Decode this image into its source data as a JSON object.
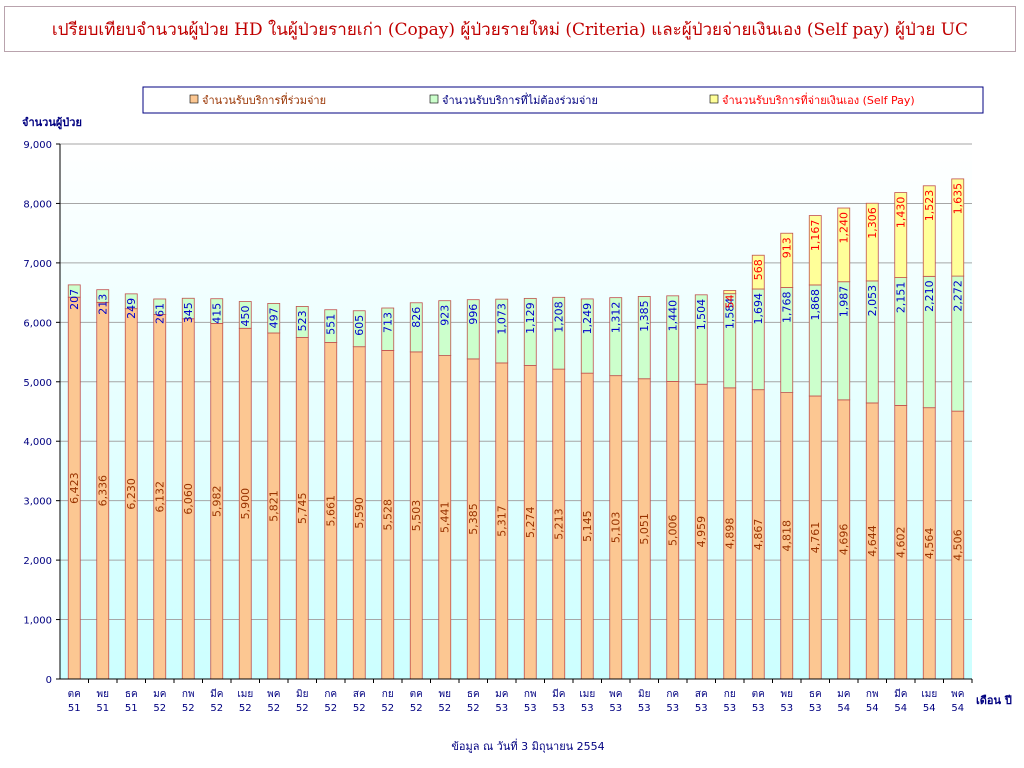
{
  "title": "เปรียบเทียบจำนวนผู้ป่วย HD ในผู้ป่วยรายเก่า (Copay) ผู้ป่วยรายใหม่ (Criteria)  และผู้ป่วยจ่ายเงินเอง (Self pay) ผู้ป่วย UC",
  "footnote": "ข้อมูล ณ วันที่ 3 มิถุนายน 2554",
  "colors": {
    "copay": "#fcc792",
    "criteria": "#ccffcc",
    "selfpay": "#ffff99",
    "bar_border": "#c0504d",
    "plot_bg_top": "#ffffff",
    "plot_bg_bottom": "#ccffff",
    "axis_text": "#000080",
    "copay_label": "#993300",
    "criteria_label": "#0000cc",
    "selfpay_label": "#ff0000"
  },
  "chart_data": {
    "type": "bar",
    "stacked": true,
    "title": "",
    "ylabel": "จำนวนผู้ป่วย",
    "xlabel": "เดือน ปี",
    "ylim": [
      0,
      9000
    ],
    "yticks": [
      "0",
      "1,000",
      "2,000",
      "3,000",
      "4,000",
      "5,000",
      "6,000",
      "7,000",
      "8,000",
      "9,000"
    ],
    "grid": true,
    "legend_position": "top",
    "categories": [
      [
        "ตค",
        "51"
      ],
      [
        "พย",
        "51"
      ],
      [
        "ธค",
        "51"
      ],
      [
        "มค",
        "52"
      ],
      [
        "กพ",
        "52"
      ],
      [
        "มีค",
        "52"
      ],
      [
        "เมย",
        "52"
      ],
      [
        "พค",
        "52"
      ],
      [
        "มิย",
        "52"
      ],
      [
        "กค",
        "52"
      ],
      [
        "สค",
        "52"
      ],
      [
        "กย",
        "52"
      ],
      [
        "ตค",
        "52"
      ],
      [
        "พย",
        "52"
      ],
      [
        "ธค",
        "52"
      ],
      [
        "มค",
        "53"
      ],
      [
        "กพ",
        "53"
      ],
      [
        "มีค",
        "53"
      ],
      [
        "เมย",
        "53"
      ],
      [
        "พค",
        "53"
      ],
      [
        "มิย",
        "53"
      ],
      [
        "กค",
        "53"
      ],
      [
        "สค",
        "53"
      ],
      [
        "กย",
        "53"
      ],
      [
        "ตค",
        "53"
      ],
      [
        "พย",
        "53"
      ],
      [
        "ธค",
        "53"
      ],
      [
        "มค",
        "54"
      ],
      [
        "กพ",
        "54"
      ],
      [
        "มีค",
        "54"
      ],
      [
        "เมย",
        "54"
      ],
      [
        "พค",
        "54"
      ]
    ],
    "series": [
      {
        "name": "จำนวนรับบริการที่ร่วมจ่าย",
        "key": "copay",
        "values": [
          6423,
          6336,
          6230,
          6132,
          6060,
          5982,
          5900,
          5821,
          5745,
          5661,
          5590,
          5528,
          5503,
          5441,
          5385,
          5317,
          5274,
          5213,
          5145,
          5103,
          5051,
          5006,
          4959,
          4898,
          4867,
          4818,
          4761,
          4696,
          4644,
          4602,
          4564,
          4506
        ],
        "labels": [
          "6,423",
          "6,336",
          "6,230",
          "6,132",
          "6,060",
          "5,982",
          "5,900",
          "5,821",
          "5,745",
          "5,661",
          "5,590",
          "5,528",
          "5,503",
          "5,441",
          "5,385",
          "5,317",
          "5,274",
          "5,213",
          "5,145",
          "5,103",
          "5,051",
          "5,006",
          "4,959",
          "4,898",
          "4,867",
          "4,818",
          "4,761",
          "4,696",
          "4,644",
          "4,602",
          "4,564",
          "4,506"
        ]
      },
      {
        "name": "จำนวนรับบริการที่ไม่ต้องร่วมจ่าย",
        "key": "criteria",
        "values": [
          207,
          213,
          249,
          261,
          345,
          415,
          450,
          497,
          523,
          551,
          605,
          713,
          826,
          923,
          996,
          1073,
          1129,
          1208,
          1249,
          1312,
          1385,
          1440,
          1504,
          1584,
          1694,
          1768,
          1868,
          1987,
          2053,
          2151,
          2210,
          2272
        ],
        "labels": [
          "207",
          "213",
          "249",
          "261",
          "345",
          "415",
          "450",
          "497",
          "523",
          "551",
          "605",
          "713",
          "826",
          "923",
          "996",
          "1,073",
          "1,129",
          "1,208",
          "1,249",
          "1,312",
          "1,385",
          "1,440",
          "1,504",
          "1,584",
          "1,694",
          "1,768",
          "1,868",
          "1,987",
          "2,053",
          "2,151",
          "2,210",
          "2,272"
        ]
      },
      {
        "name": "จำนวนรับบริการที่จ่ายเงินเอง (Self Pay)",
        "key": "selfpay",
        "values": [
          0,
          0,
          0,
          0,
          0,
          0,
          0,
          0,
          0,
          0,
          0,
          0,
          0,
          0,
          0,
          0,
          0,
          0,
          0,
          0,
          0,
          0,
          0,
          54,
          568,
          913,
          1167,
          1240,
          1306,
          1430,
          1523,
          1635
        ],
        "labels": [
          "",
          "",
          "",
          "",
          "",
          "",
          "",
          "",
          "",
          "",
          "",
          "",
          "",
          "",
          "",
          "",
          "",
          "",
          "",
          "",
          "",
          "",
          "",
          "54",
          "568",
          "913",
          "1,167",
          "1,240",
          "1,306",
          "1,430",
          "1,523",
          "1,635"
        ]
      }
    ]
  }
}
